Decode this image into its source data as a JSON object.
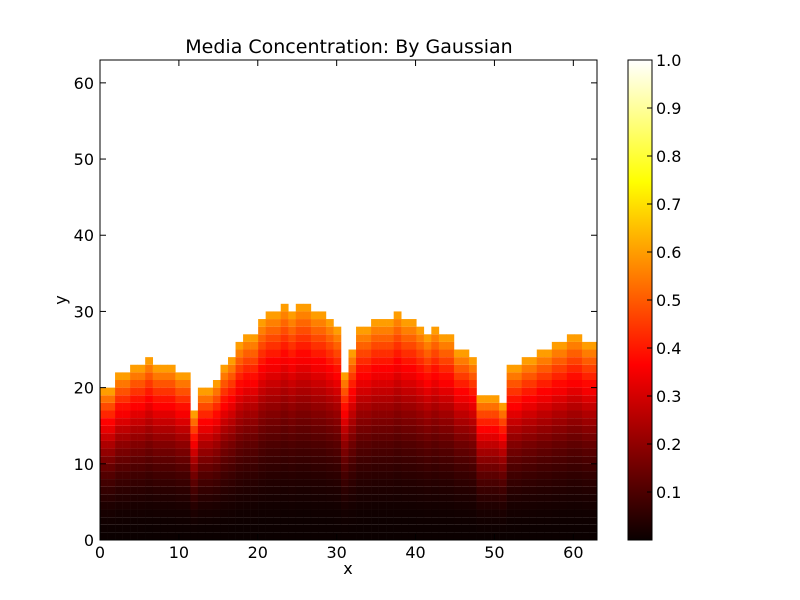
{
  "chart_data": {
    "type": "heatmap",
    "title": "Media Concentration: By Gaussian",
    "xlabel": "x",
    "ylabel": "y",
    "xlim": [
      0,
      63
    ],
    "ylim": [
      0,
      63
    ],
    "x_ticks": [
      "0",
      "10",
      "20",
      "30",
      "40",
      "50",
      "60"
    ],
    "y_ticks": [
      "0",
      "10",
      "20",
      "30",
      "40",
      "50",
      "60"
    ],
    "colormap": "hot",
    "colorbar": {
      "range": [
        0.0,
        1.0
      ],
      "ticks": [
        "0.1",
        "0.2",
        "0.3",
        "0.4",
        "0.5",
        "0.6",
        "0.7",
        "0.8",
        "0.9",
        "1.0"
      ]
    },
    "empty_color": "#ffffff",
    "surface_heights": [
      20,
      20,
      22,
      22,
      23,
      23,
      24,
      23,
      23,
      23,
      22,
      22,
      17,
      20,
      20,
      21,
      23,
      24,
      26,
      27,
      27,
      29,
      30,
      30,
      31,
      30,
      31,
      31,
      30,
      30,
      29,
      28,
      22,
      25,
      28,
      28,
      29,
      29,
      29,
      30,
      29,
      29,
      28,
      27,
      28,
      27,
      27,
      25,
      25,
      24,
      19,
      19,
      19,
      18,
      23,
      23,
      24,
      24,
      25,
      25,
      26,
      26,
      27,
      27,
      26,
      26
    ],
    "note_values": "concentration per cell ~ 0.6 * (y / surface_height)^2.2; cells above the surface are empty (white)"
  }
}
